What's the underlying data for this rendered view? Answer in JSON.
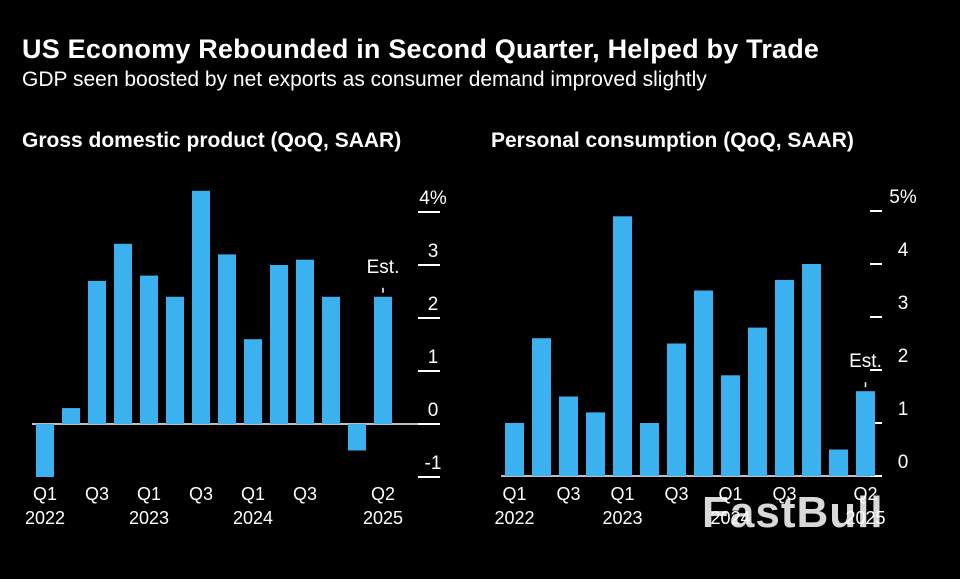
{
  "title": "US Economy Rebounded in Second Quarter, Helped by Trade",
  "subtitle": "GDP seen boosted by net exports as consumer demand improved slightly",
  "watermark": "FastBull",
  "colors": {
    "bar": "#3cb1f0",
    "background": "#000000",
    "axis": "#ffffff"
  },
  "chart_data": [
    {
      "type": "bar",
      "title": "Gross domestic product (QoQ, SAAR)",
      "quarters": [
        "Q1 2022",
        "Q2 2022",
        "Q3 2022",
        "Q4 2022",
        "Q1 2023",
        "Q2 2023",
        "Q3 2023",
        "Q4 2023",
        "Q1 2024",
        "Q2 2024",
        "Q3 2024",
        "Q4 2024",
        "Q1 2025",
        "Q2 2025"
      ],
      "values": [
        -1.0,
        0.3,
        2.7,
        3.4,
        2.8,
        2.4,
        4.4,
        3.2,
        1.6,
        3.0,
        3.1,
        2.4,
        -0.5,
        2.4
      ],
      "ylim": [
        -1,
        4
      ],
      "yticks": [
        -1,
        0,
        1,
        2,
        3,
        4
      ],
      "ytick_labels": [
        "-1",
        "0",
        "1",
        "2",
        "3",
        "4%"
      ],
      "x_tick_labels": [
        {
          "index": 0,
          "q": "Q1",
          "year": "2022"
        },
        {
          "index": 2,
          "q": "Q3",
          "year": ""
        },
        {
          "index": 4,
          "q": "Q1",
          "year": "2023"
        },
        {
          "index": 6,
          "q": "Q3",
          "year": ""
        },
        {
          "index": 8,
          "q": "Q1",
          "year": "2024"
        },
        {
          "index": 10,
          "q": "Q3",
          "year": ""
        },
        {
          "index": 13,
          "q": "Q2",
          "year": "2025"
        }
      ],
      "annotation": {
        "index": 13,
        "text": "Est."
      }
    },
    {
      "type": "bar",
      "title": "Personal consumption (QoQ, SAAR)",
      "quarters": [
        "Q1 2022",
        "Q2 2022",
        "Q3 2022",
        "Q4 2022",
        "Q1 2023",
        "Q2 2023",
        "Q3 2023",
        "Q4 2023",
        "Q1 2024",
        "Q2 2024",
        "Q3 2024",
        "Q4 2024",
        "Q1 2025",
        "Q2 2025"
      ],
      "values": [
        1.0,
        2.6,
        1.5,
        1.2,
        4.9,
        1.0,
        2.5,
        3.5,
        1.9,
        2.8,
        3.7,
        4.0,
        0.5,
        1.6
      ],
      "ylim": [
        0,
        5
      ],
      "yticks": [
        0,
        1,
        2,
        3,
        4,
        5
      ],
      "ytick_labels": [
        "0",
        "1",
        "2",
        "3",
        "4",
        "5%"
      ],
      "x_tick_labels": [
        {
          "index": 0,
          "q": "Q1",
          "year": "2022"
        },
        {
          "index": 2,
          "q": "Q3",
          "year": ""
        },
        {
          "index": 4,
          "q": "Q1",
          "year": "2023"
        },
        {
          "index": 6,
          "q": "Q3",
          "year": ""
        },
        {
          "index": 8,
          "q": "Q1",
          "year": "2024"
        },
        {
          "index": 10,
          "q": "Q3",
          "year": ""
        },
        {
          "index": 13,
          "q": "Q2",
          "year": "2025"
        }
      ],
      "annotation": {
        "index": 13,
        "text": "Est."
      }
    }
  ]
}
